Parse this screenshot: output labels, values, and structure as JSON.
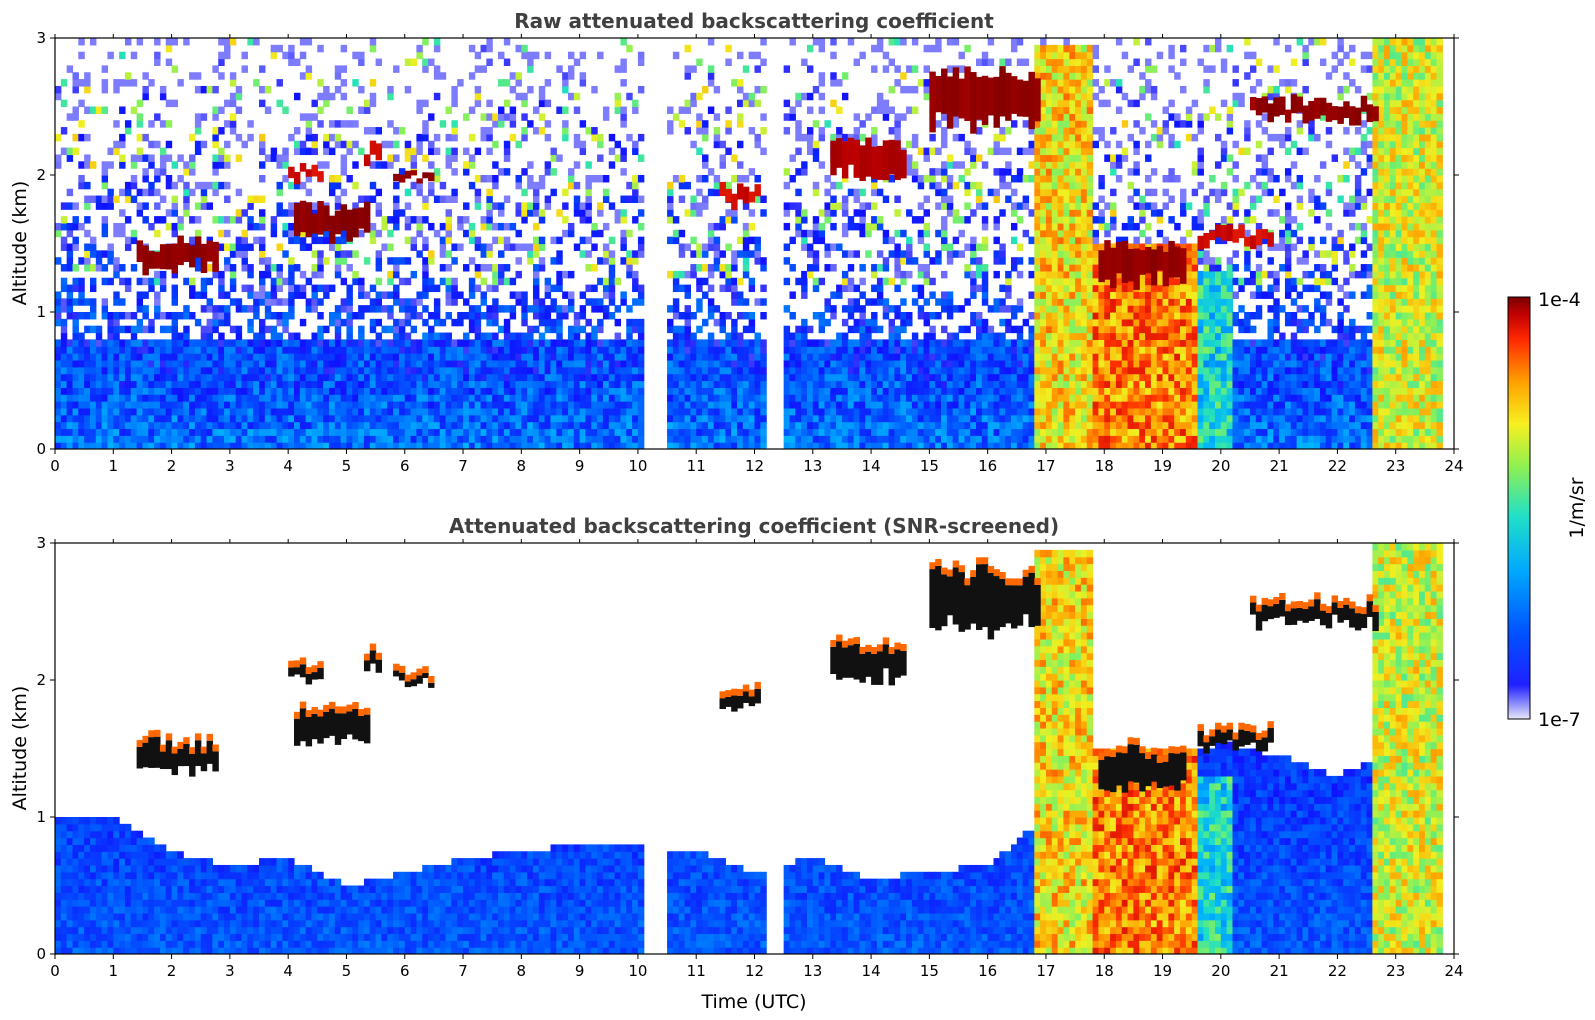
{
  "chart_data": [
    {
      "type": "heatmap",
      "title": "Raw attenuated backscattering coefficient",
      "xlabel": "",
      "ylabel": "Altitude (km)",
      "xlim": [
        0,
        24
      ],
      "ylim": [
        0,
        3
      ],
      "xticks": [
        "0",
        "1",
        "2",
        "3",
        "4",
        "5",
        "6",
        "7",
        "8",
        "9",
        "10",
        "11",
        "12",
        "13",
        "14",
        "15",
        "16",
        "17",
        "18",
        "19",
        "20",
        "21",
        "22",
        "23",
        "24"
      ],
      "yticks": [
        "0",
        "1",
        "2",
        "3"
      ],
      "data_gaps_utc": [
        [
          10.15,
          10.55
        ],
        [
          12.2,
          12.55
        ],
        [
          23.8,
          24
        ]
      ],
      "background_noise_upper_km": 3.0,
      "layers": [
        {
          "t0": 1.4,
          "t1": 2.8,
          "alt_km": [
            1.25,
            1.6
          ],
          "level": 1.0
        },
        {
          "t0": 4.1,
          "t1": 5.4,
          "alt_km": [
            1.45,
            1.85
          ],
          "level": 1.0
        },
        {
          "t0": 4.0,
          "t1": 4.6,
          "alt_km": [
            1.95,
            2.1
          ],
          "level": 0.9
        },
        {
          "t0": 5.3,
          "t1": 5.6,
          "alt_km": [
            2.05,
            2.25
          ],
          "level": 0.9
        },
        {
          "t0": 5.8,
          "t1": 6.5,
          "alt_km": [
            1.95,
            2.05
          ],
          "level": 1.0
        },
        {
          "t0": 11.4,
          "t1": 12.1,
          "alt_km": [
            1.75,
            1.95
          ],
          "level": 0.9
        },
        {
          "t0": 13.3,
          "t1": 14.6,
          "alt_km": [
            1.9,
            2.35
          ],
          "level": 0.95
        },
        {
          "t0": 15.0,
          "t1": 16.9,
          "alt_km": [
            2.2,
            2.95
          ],
          "level": 1.0
        },
        {
          "t0": 20.5,
          "t1": 22.7,
          "alt_km": [
            2.35,
            2.6
          ],
          "level": 1.0
        },
        {
          "t0": 17.9,
          "t1": 19.4,
          "alt_km": [
            1.1,
            1.6
          ],
          "level": 1.0
        },
        {
          "t0": 19.6,
          "t1": 20.9,
          "alt_km": [
            1.45,
            1.65
          ],
          "level": 0.9
        }
      ],
      "precipitation_streaks": [
        {
          "t0": 16.8,
          "t1": 17.8,
          "top_km": 2.95,
          "level": 0.75
        },
        {
          "t0": 17.8,
          "t1": 19.6,
          "top_km": 1.5,
          "level": 0.85
        },
        {
          "t0": 19.6,
          "t1": 20.2,
          "top_km": 1.3,
          "level": 0.5
        },
        {
          "t0": 22.6,
          "t1": 23.8,
          "top_km": 3.0,
          "level": 0.7
        }
      ]
    },
    {
      "type": "heatmap",
      "title": "Attenuated backscattering coefficient (SNR-screened)",
      "xlabel": "Time (UTC)",
      "ylabel": "Altitude (km)",
      "xlim": [
        0,
        24
      ],
      "ylim": [
        0,
        3
      ],
      "xticks": [
        "0",
        "1",
        "2",
        "3",
        "4",
        "5",
        "6",
        "7",
        "8",
        "9",
        "10",
        "11",
        "12",
        "13",
        "14",
        "15",
        "16",
        "17",
        "18",
        "19",
        "20",
        "21",
        "22",
        "23",
        "24"
      ],
      "yticks": [
        "0",
        "1",
        "2",
        "3"
      ],
      "screened_boundary_layer_top_km": [
        [
          0,
          1.0
        ],
        [
          1,
          1.0
        ],
        [
          2,
          0.75
        ],
        [
          3,
          0.65
        ],
        [
          4,
          0.7
        ],
        [
          5,
          0.5
        ],
        [
          6,
          0.6
        ],
        [
          7,
          0.7
        ],
        [
          8,
          0.75
        ],
        [
          9,
          0.8
        ],
        [
          10,
          0.8
        ],
        [
          11,
          0.75
        ],
        [
          12,
          0.6
        ],
        [
          13,
          0.7
        ],
        [
          14,
          0.55
        ],
        [
          15,
          0.6
        ],
        [
          16,
          0.65
        ],
        [
          17,
          1.0
        ],
        [
          18,
          1.45
        ],
        [
          19,
          1.35
        ],
        [
          20,
          1.55
        ],
        [
          21,
          1.45
        ],
        [
          22,
          1.3
        ],
        [
          23,
          1.5
        ],
        [
          24,
          1.5
        ]
      ],
      "note_layers_same_as_raw": true
    }
  ],
  "colorbar": {
    "max_label": "1e-4",
    "min_label": "1e-7",
    "unit_label": "1/m/sr",
    "colormap": [
      "#e8e8f8",
      "#1010ff",
      "#0060ff",
      "#00b0ff",
      "#20e0c0",
      "#80f060",
      "#f0f020",
      "#ffa000",
      "#ff3000",
      "#c00000",
      "#800000"
    ]
  }
}
